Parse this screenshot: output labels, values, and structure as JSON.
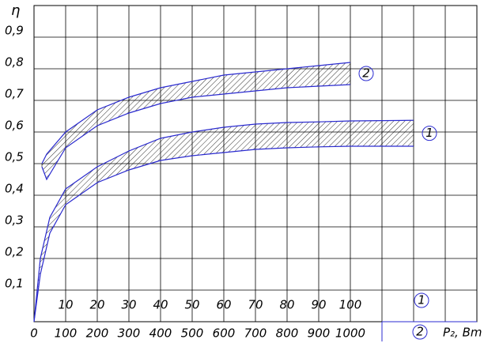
{
  "chart_data": {
    "type": "band",
    "y_label": "η",
    "x_label": "P₂, Bm",
    "ylim": [
      0,
      1
    ],
    "yticks": [
      {
        "value": 0.1,
        "label": "0,1"
      },
      {
        "value": 0.2,
        "label": "0,2"
      },
      {
        "value": 0.3,
        "label": "0,3"
      },
      {
        "value": 0.4,
        "label": "0,4"
      },
      {
        "value": 0.5,
        "label": "0,5"
      },
      {
        "value": 0.6,
        "label": "0,6"
      },
      {
        "value": 0.7,
        "label": "0,7"
      },
      {
        "value": 0.8,
        "label": "0,8"
      },
      {
        "value": 0.9,
        "label": "0,9"
      }
    ],
    "xlim": [
      0,
      140
    ],
    "xticks": [
      10,
      20,
      30,
      40,
      50,
      60,
      70,
      80,
      90,
      100
    ],
    "x2lim": [
      0,
      1400
    ],
    "x2ticks": [
      0,
      100,
      200,
      300,
      400,
      500,
      600,
      700,
      800,
      900,
      1000
    ],
    "grid": true,
    "line_color": "#2b2bd0",
    "series": [
      {
        "name": "1",
        "axis": "x",
        "x": [
          0,
          2,
          5,
          10,
          20,
          30,
          40,
          50,
          60,
          70,
          80,
          90,
          100,
          120
        ],
        "upper": [
          0,
          0.2,
          0.33,
          0.42,
          0.49,
          0.54,
          0.58,
          0.6,
          0.615,
          0.625,
          0.63,
          0.632,
          0.635,
          0.637
        ],
        "lower": [
          0,
          0.15,
          0.28,
          0.37,
          0.44,
          0.48,
          0.51,
          0.525,
          0.535,
          0.545,
          0.55,
          0.553,
          0.555,
          0.555
        ]
      },
      {
        "name": "2",
        "axis": "x2",
        "x": [
          25,
          40,
          100,
          200,
          300,
          400,
          500,
          600,
          700,
          800,
          900,
          1000
        ],
        "upper": [
          0.5,
          0.53,
          0.6,
          0.67,
          0.71,
          0.74,
          0.76,
          0.78,
          0.79,
          0.8,
          0.81,
          0.82
        ],
        "lower": [
          0.49,
          0.45,
          0.55,
          0.62,
          0.66,
          0.69,
          0.71,
          0.72,
          0.73,
          0.74,
          0.745,
          0.75
        ]
      }
    ]
  }
}
